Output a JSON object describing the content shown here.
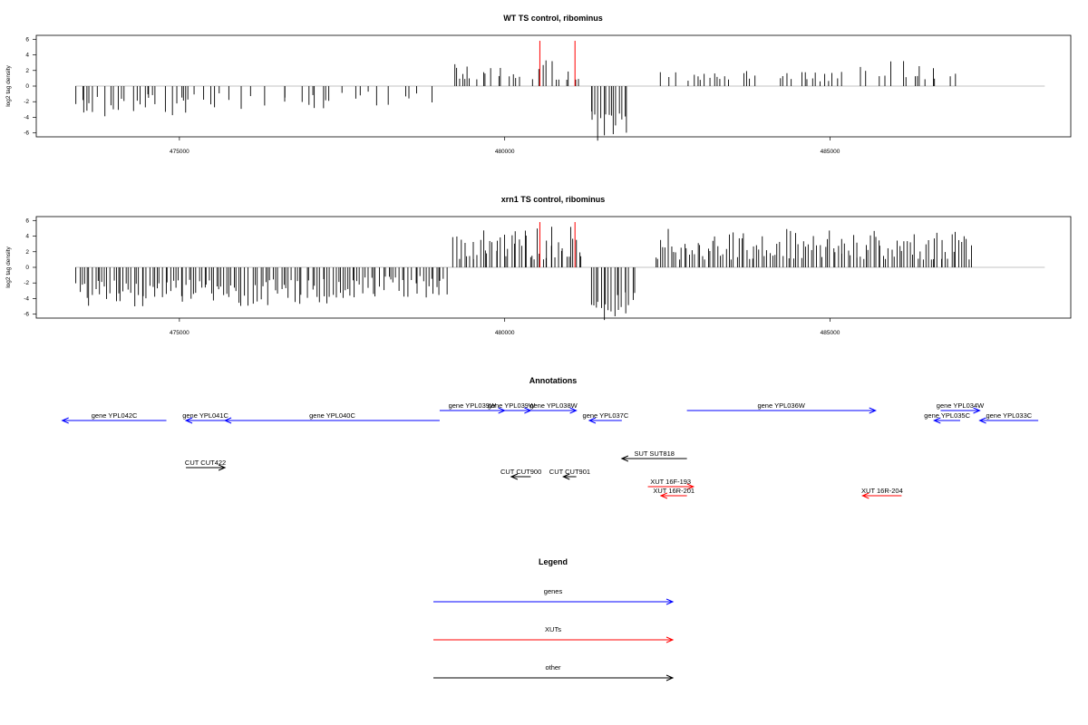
{
  "chart_data": [
    {
      "type": "bar",
      "title": "WT TS control, ribominus",
      "ylabel": "log2 tag density",
      "xlim": [
        472800,
        488700
      ],
      "ylim": [
        -6.5,
        6.5
      ],
      "x_ticks": [
        475000,
        480000,
        485000
      ],
      "x_tick_labels": [
        "475000",
        "480000",
        "485000"
      ],
      "y_ticks": [
        -6,
        -4,
        -2,
        0,
        2,
        4,
        6
      ],
      "y_tick_labels": [
        "-6",
        "-4",
        "-2",
        "0",
        "2",
        "4",
        "6"
      ],
      "regions": [
        {
          "start": 473400,
          "end": 475100,
          "density": 0.55,
          "min": -4.0,
          "max": -1.0
        },
        {
          "start": 475100,
          "end": 477300,
          "density": 0.35,
          "min": -3.0,
          "max": -0.8
        },
        {
          "start": 477300,
          "end": 478900,
          "density": 0.3,
          "min": -2.5,
          "max": -0.6
        },
        {
          "start": 479200,
          "end": 480600,
          "density": 0.55,
          "min": 0.8,
          "max": 3.2
        },
        {
          "start": 480600,
          "end": 481200,
          "density": 0.4,
          "min": 0.8,
          "max": 3.5
        },
        {
          "start": 481300,
          "end": 481900,
          "density": 1.0,
          "min": -7.0,
          "max": -3.0
        },
        {
          "start": 482300,
          "end": 485400,
          "density": 0.35,
          "min": 0.6,
          "max": 2.0
        },
        {
          "start": 485400,
          "end": 487300,
          "density": 0.4,
          "min": 0.8,
          "max": 3.8
        }
      ],
      "highlight_bars": [
        {
          "x": 480540,
          "y": 5.8
        },
        {
          "x": 481080,
          "y": 5.8
        }
      ],
      "highlight_color": "#ff0000",
      "bar_color": "#000000"
    },
    {
      "type": "bar",
      "title": "xrn1 TS control, ribominus",
      "ylabel": "log2 tag density",
      "xlim": [
        472800,
        488700
      ],
      "ylim": [
        -6.5,
        6.5
      ],
      "x_ticks": [
        475000,
        480000,
        485000
      ],
      "x_tick_labels": [
        "475000",
        "480000",
        "485000"
      ],
      "y_ticks": [
        -6,
        -4,
        -2,
        0,
        2,
        4,
        6
      ],
      "y_tick_labels": [
        "-6",
        "-4",
        "-2",
        "0",
        "2",
        "4",
        "6"
      ],
      "regions": [
        {
          "start": 473400,
          "end": 475500,
          "density": 1.0,
          "min": -5.0,
          "max": -1.5
        },
        {
          "start": 475500,
          "end": 477600,
          "density": 0.95,
          "min": -5.0,
          "max": -1.5
        },
        {
          "start": 477600,
          "end": 479100,
          "density": 0.9,
          "min": -4.0,
          "max": -1.0
        },
        {
          "start": 479200,
          "end": 481200,
          "density": 1.0,
          "min": 1.0,
          "max": 5.2
        },
        {
          "start": 481300,
          "end": 482000,
          "density": 1.0,
          "min": -7.0,
          "max": -3.0
        },
        {
          "start": 482300,
          "end": 485400,
          "density": 1.0,
          "min": 1.0,
          "max": 5.0
        },
        {
          "start": 485400,
          "end": 487200,
          "density": 1.0,
          "min": 1.0,
          "max": 5.0
        }
      ],
      "highlight_bars": [
        {
          "x": 480540,
          "y": 5.8
        },
        {
          "x": 481080,
          "y": 5.8
        }
      ],
      "highlight_color": "#ff0000",
      "bar_color": "#000000"
    }
  ],
  "annotations": {
    "title": "Annotations",
    "features": [
      {
        "label": "gene YPL042C",
        "start": 473200,
        "end": 474800,
        "strand": "-",
        "kind": "gene",
        "row": 1
      },
      {
        "label": "gene YPL041C",
        "start": 475100,
        "end": 475700,
        "strand": "-",
        "kind": "gene",
        "row": 1
      },
      {
        "label": "gene YPL040C",
        "start": 475700,
        "end": 479000,
        "strand": "-",
        "kind": "gene",
        "row": 1
      },
      {
        "label": "gene YPL039W",
        "start": 479000,
        "end": 480000,
        "strand": "+",
        "kind": "gene",
        "row": 0
      },
      {
        "label": "gene YPL039W",
        "start": 479800,
        "end": 480400,
        "strand": "+",
        "kind": "gene",
        "row": 0
      },
      {
        "label": "gene YPL038W",
        "start": 480400,
        "end": 481100,
        "strand": "+",
        "kind": "gene",
        "row": 0
      },
      {
        "label": "gene YPL037C",
        "start": 481300,
        "end": 481800,
        "strand": "-",
        "kind": "gene",
        "row": 1
      },
      {
        "label": "gene YPL036W",
        "start": 482800,
        "end": 485700,
        "strand": "+",
        "kind": "gene",
        "row": 0
      },
      {
        "label": "gene YPL034W",
        "start": 486700,
        "end": 487300,
        "strand": "+",
        "kind": "gene",
        "row": 0
      },
      {
        "label": "gene YPL035C",
        "start": 486600,
        "end": 487000,
        "strand": "-",
        "kind": "gene",
        "row": 1
      },
      {
        "label": "gene YPL033C",
        "start": 487300,
        "end": 488200,
        "strand": "-",
        "kind": "gene",
        "row": 1
      },
      {
        "label": "SUT SUT818",
        "start": 481800,
        "end": 482800,
        "strand": "-",
        "kind": "other",
        "row": 3
      },
      {
        "label": "CUT CUT422",
        "start": 475100,
        "end": 475700,
        "strand": "+",
        "kind": "other",
        "row": 4
      },
      {
        "label": "CUT CUT900",
        "start": 480100,
        "end": 480400,
        "strand": "-",
        "kind": "other",
        "row": 5
      },
      {
        "label": "CUT CUT901",
        "start": 480900,
        "end": 481100,
        "strand": "-",
        "kind": "other",
        "row": 5
      },
      {
        "label": "XUT 16F-193",
        "start": 482200,
        "end": 482900,
        "strand": "+",
        "kind": "xut",
        "row": 6
      },
      {
        "label": "XUT 16R-201",
        "start": 482400,
        "end": 482800,
        "strand": "-",
        "kind": "xut",
        "row": 7
      },
      {
        "label": "XUT 16R-204",
        "start": 485500,
        "end": 486100,
        "strand": "-",
        "kind": "xut",
        "row": 7
      }
    ]
  },
  "legend": {
    "title": "Legend",
    "items": [
      {
        "label": "genes",
        "color": "#0000ff"
      },
      {
        "label": "XUTs",
        "color": "#ff0000"
      },
      {
        "label": "other",
        "color": "#000000"
      }
    ]
  }
}
